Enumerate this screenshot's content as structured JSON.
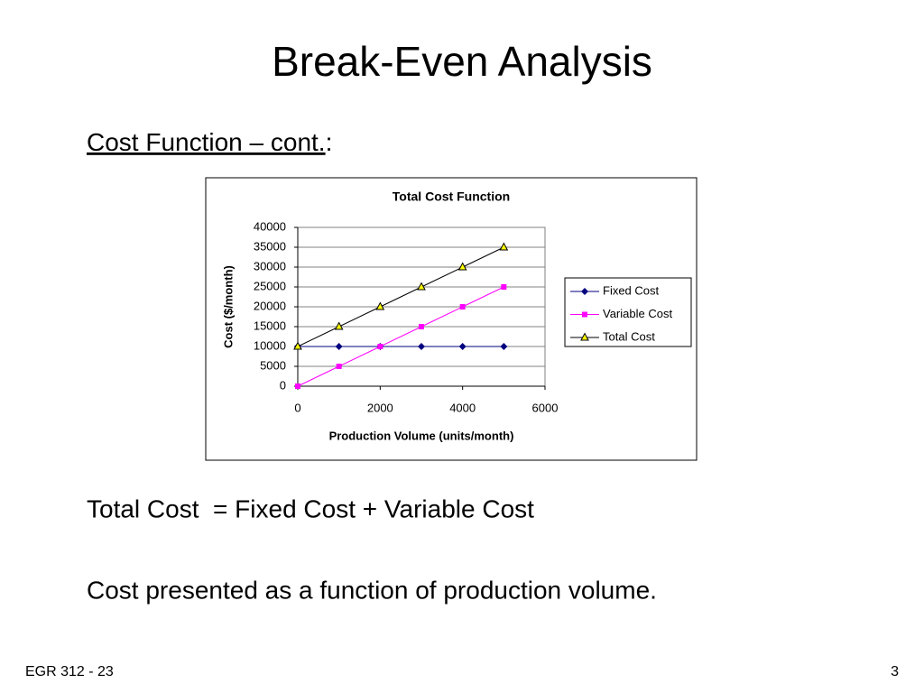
{
  "slide": {
    "title": "Break-Even Analysis",
    "heading": "Cost Function – cont.",
    "heading_suffix": ":",
    "lines": [
      "Total Cost  = Fixed Cost + Variable Cost",
      "Cost presented as a function of production volume."
    ],
    "footer_left": "EGR 312 - 23",
    "page_number": "3"
  },
  "chart_data": {
    "type": "line",
    "title": "Total Cost Function",
    "x_label": "Production Volume (units/month)",
    "y_label": "Cost ($/month)",
    "x": [
      0,
      1000,
      2000,
      3000,
      4000,
      5000
    ],
    "series": [
      {
        "name": "Fixed Cost",
        "color": "#000080",
        "marker": "diamond",
        "marker_color": "#000080",
        "values": [
          10000,
          10000,
          10000,
          10000,
          10000,
          10000
        ]
      },
      {
        "name": "Variable Cost",
        "color": "#ff00ff",
        "marker": "square",
        "marker_color": "#ff00ff",
        "values": [
          0,
          5000,
          10000,
          15000,
          20000,
          25000
        ]
      },
      {
        "name": "Total Cost",
        "color": "#000000",
        "marker": "triangle",
        "marker_color": "#ffff00",
        "values": [
          10000,
          15000,
          20000,
          25000,
          30000,
          35000
        ]
      }
    ],
    "xlim": [
      0,
      6000
    ],
    "xticks": [
      0,
      2000,
      4000,
      6000
    ],
    "ylim": [
      0,
      40000
    ],
    "yticks": [
      0,
      5000,
      10000,
      15000,
      20000,
      25000,
      30000,
      35000,
      40000
    ],
    "grid": true,
    "legend": "right"
  }
}
